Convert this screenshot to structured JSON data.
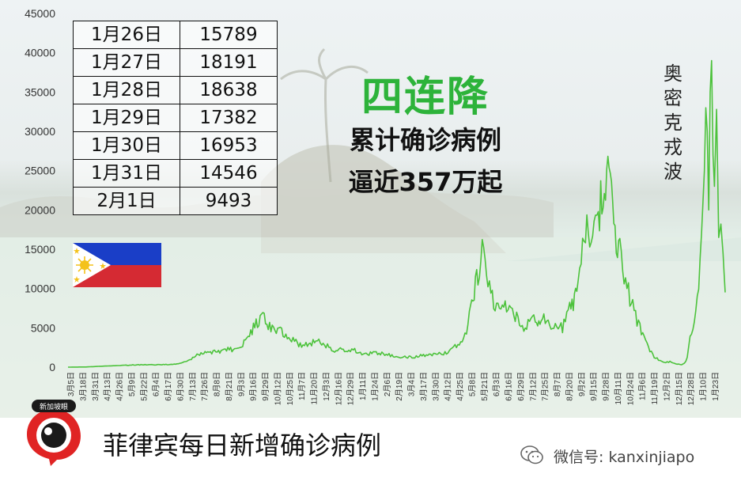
{
  "table": [
    {
      "date": "1月26日",
      "cases": "15789"
    },
    {
      "date": "1月27日",
      "cases": "18191"
    },
    {
      "date": "1月28日",
      "cases": "18638"
    },
    {
      "date": "1月29日",
      "cases": "17382"
    },
    {
      "date": "1月30日",
      "cases": "16953"
    },
    {
      "date": "1月31日",
      "cases": "14546"
    },
    {
      "date": "2月1日",
      "cases": "9493"
    }
  ],
  "headline": {
    "main": "四连降",
    "line2": "累计确诊病例",
    "line3": "逼近357万起"
  },
  "annotation": "奥密克戎波",
  "caption": "菲律宾每日新增确诊病例",
  "logo_text": "新加坡眼",
  "wechat": "微信号: kanxinjiapo",
  "colors": {
    "line": "#4cc23b",
    "headline": "#2db33a"
  },
  "chart_data": {
    "type": "line",
    "title": "",
    "xlabel": "",
    "ylabel": "",
    "ylim": [
      0,
      45000
    ],
    "yticks": [
      "0",
      "5000",
      "10000",
      "15000",
      "20000",
      "25000",
      "30000",
      "35000",
      "40000",
      "45000"
    ],
    "xticks": [
      "3月5日",
      "3月18日",
      "3月31日",
      "4月13日",
      "4月26日",
      "5月9日",
      "5月22日",
      "6月4日",
      "6月17日",
      "6月30日",
      "7月13日",
      "7月26日",
      "8月8日",
      "8月21日",
      "9月3日",
      "9月16日",
      "9月29日",
      "10月12日",
      "10月25日",
      "11月7日",
      "11月20日",
      "12月3日",
      "12月16日",
      "12月29日",
      "1月11日",
      "1月24日",
      "2月6日",
      "2月19日",
      "3月4日",
      "3月17日",
      "3月30日",
      "4月12日",
      "4月25日",
      "5月8日",
      "5月21日",
      "6月3日",
      "6月16日",
      "6月29日",
      "7月12日",
      "7月25日",
      "8月7日",
      "8月20日",
      "9月2日",
      "9月15日",
      "9月28日",
      "10月11日",
      "10月24日",
      "11月6日",
      "11月19日",
      "12月2日",
      "12月15日",
      "12月28日",
      "1月10日",
      "1月23日"
    ],
    "grid": false,
    "series": [
      {
        "x": [
          0,
          25,
          50,
          75,
          100,
          115,
          125,
          135,
          140,
          150,
          160,
          170,
          180,
          195,
          210,
          225,
          240,
          255,
          270,
          285,
          300,
          312,
          322,
          332,
          342,
          350,
          356,
          360,
          366,
          372,
          378,
          390,
          400,
          410,
          420,
          430,
          440,
          450,
          460,
          470,
          480,
          490,
          500,
          512,
          524,
          536,
          548,
          556,
          560,
          565,
          572,
          578,
          584,
          590,
          598,
          606,
          612,
          618,
          624,
          630,
          636,
          640,
          646,
          652,
          657,
          662,
          668,
          676,
          684,
          690,
          696,
          700,
          705,
          710,
          716,
          722,
          726,
          730,
          736,
          740,
          745,
          750,
          755,
          760,
          765,
          770,
          778,
          786,
          794,
          802,
          810,
          818,
          826,
          834,
          842,
          850,
          856,
          860,
          864,
          868,
          872,
          876,
          880,
          884,
          888,
          890,
          892,
          894,
          896,
          898,
          900,
          902,
          905,
          908,
          911,
          914,
          917
        ],
        "y": [
          0,
          25,
          130,
          220,
          310,
          290,
          300,
          350,
          300,
          400,
          600,
          900,
          1500,
          1900,
          2000,
          2300,
          2200,
          4500,
          6500,
          4700,
          4500,
          3700,
          2800,
          2800,
          3200,
          3500,
          3000,
          2800,
          2500,
          2200,
          2300,
          2100,
          2100,
          1800,
          1700,
          1800,
          1700,
          1500,
          1300,
          1400,
          1200,
          1400,
          1500,
          1600,
          1700,
          2300,
          3000,
          4500,
          6500,
          9000,
          12000,
          15000,
          11000,
          9000,
          7500,
          7000,
          8000,
          7000,
          6500,
          5500,
          5000,
          5500,
          7000,
          6000,
          6000,
          6500,
          5500,
          5500,
          5500,
          5000,
          7000,
          8000,
          7500,
          10000,
          14000,
          18000,
          19000,
          14000,
          21000,
          18500,
          22500,
          23000,
          26500,
          20000,
          16500,
          15000,
          10500,
          8500,
          5800,
          4000,
          2500,
          1300,
          800,
          600,
          700,
          400,
          300,
          500,
          1200,
          3500,
          5000,
          7800,
          11000,
          17000,
          25000,
          33000,
          30000,
          20000,
          35000,
          39000,
          27000,
          23000,
          32800,
          16500,
          18200,
          14500,
          9500
        ]
      }
    ]
  }
}
